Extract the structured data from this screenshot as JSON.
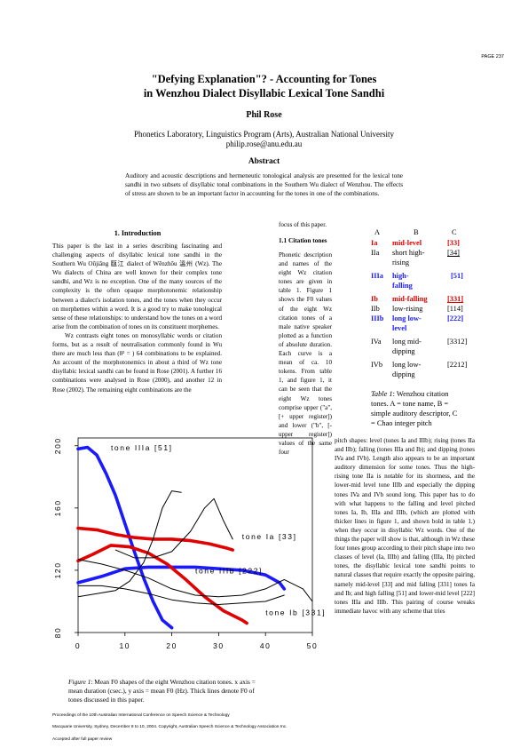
{
  "page_number": "PAGE 237",
  "title_line1": "\"Defying Explanation\"? - Accounting for Tones",
  "title_line2": "in Wenzhou Dialect Disyllabic Lexical Tone Sandhi",
  "author": "Phil Rose",
  "affiliation": "Phonetics Laboratory, Linguistics Program (Arts), Australian National University",
  "email": "philip.rose@anu.edu.au",
  "abstract_heading": "Abstract",
  "abstract_text": "Auditory and acoustic descriptions and hermeneutic tonological analysis are presented for the lexical tone sandhi in two subsets of disyllabic tonal combinations in the Southern Wu dialect of Wenzhou. The effects of stress are shown to be an important factor in accounting for the tones in one of the combinations.",
  "section1_heading": "1. Introduction",
  "intro_para1": "This paper is the last in a series describing fascinating and challenging aspects of disyllabic lexical tone sandhi in the Southern Wu Oūjiāng 甌江 dialect of Wēnzhōu 溫州 (Wz). The Wu dialects of China are well known for their complex tone sandhi, and Wz is no exception. One of the many sources of the complexity is the often opaque morphotonemic relationship between a dialect's isolation tones, and the tones when they occur on morphemes within a word. It is a good try to make tonological sense of these relationships: to understand how the tones on a word arise from the combination of tones on its constituent morphemes.",
  "intro_para2": "Wz contrasts eight tones on monosyllabic words or citation forms, but as a result of neutralisation commonly found in Wu there are much less than (8² = ) 64 combinations to be explained. An account of the morphotonemics in about a third of Wz tone disyllabic lexical sandhi can be found in Rose (2001). A further 16 combinations were analysed in Rose (2000), and another 12 in Rose (2002). The remaining eight combinations are the",
  "col2_top_text": "focus of this paper.",
  "subsection_heading": "1.1 Citation tones",
  "citation_text": "Phonetic description and names of the eight Wz citation tones are given in table 1. Figure 1 shows the F0 values of the eight Wz citation tones of a male native speaker plotted as a function of absolute duration. Each curve is a mean of ca. 10 tokens. From table 1, and figure 1, it can be seen that the eight Wz tones comprise upper (\"a\", [+ upper register]) and lower (\"b\", [-upper register]) values of the same four",
  "table": {
    "headers": [
      "A",
      "B",
      "C"
    ],
    "rows": [
      {
        "a": "Ia",
        "b": "mid-level",
        "c": "[33]",
        "style": "red",
        "c_underline": false
      },
      {
        "a": "IIa",
        "b": "short high-rising",
        "c": "[34]",
        "style": "plain",
        "c_underline": true
      },
      {
        "a": "IIIa",
        "b": "high-falling",
        "c": "[51]",
        "style": "blue",
        "c_underline": false
      },
      {
        "a": "Ib",
        "b": "mid-falling",
        "c": "[331]",
        "style": "red",
        "c_underline": true
      },
      {
        "a": "IIb",
        "b": "low-rising",
        "c": "[114]",
        "style": "plain",
        "c_underline": false
      },
      {
        "a": "IIIb",
        "b": "long low-level",
        "c": "[222]",
        "style": "blue",
        "c_underline": false
      },
      {
        "a": "IVa",
        "b": "long mid-dipping",
        "c": "[3312]",
        "style": "plain",
        "c_underline": false
      },
      {
        "a": "IVb",
        "b": "long low-dipping",
        "c": "[2212]",
        "style": "plain",
        "c_underline": false
      }
    ],
    "caption_label": "Table 1",
    "caption_text": ": Wenzhou citation tones. A = tone name, B = simple auditory descriptor, C = Chao integer pitch"
  },
  "col3_text": "pitch shapes: level (tones Ia and IIIb); rising (tones IIa and IIb); falling (tones IIIa and Ib); and dipping (tones IVa and IVb). Length also appears to be an important auditory dimension for some tones. Thus the high-rising tone IIa is notable for its shortness, and the lower-mid level tone IIIb and especially the dipping tones IVa and IVb sound long. This paper has to do with what happens to the falling and level pitched tones Ia, Ib, IIIa and IIIb, (which are plotted with thicker lines in figure 1, and shown bold in table 1.) when they occur in disyllabic Wz words. One of the things the paper will show is that, although in Wz these four tones group according to their pitch shape into two classes of level (Ia, IIIb) and falling (IIIa, Ib) pitched tones, the disyllabic lexical tone sandhi points to natural classes that require exactly the opposite pairing, namely mid-level [33] and mid falling [331] tones Ia and Ib; and high falling [51] and lower-mid level [222] tones IIIa and IIIb. This pairing of course wreaks immediate havoc with any scheme that tries",
  "figure_caption_label": "Figure 1",
  "figure_caption_text": ": Mean F0 shapes of the eight Wenzhou citation tones. x axis = mean duration (csec.), y axis = mean F0 (Hz). Thick lines denote F0 of tones discussed in this paper.",
  "footer_line1": "Proceedings of the 10th Australian International Conference on Speech Science & Technology",
  "footer_line2": "Macquarie University, Sydney, December 8 to 10, 2004. Copyright, Australian Speech Science & Technology Association Inc.",
  "footer_line3": "Accepted after full paper review",
  "colors": {
    "red": "#e00000",
    "blue": "#1a1aff",
    "thin": "#000000"
  },
  "chart_data": {
    "type": "line",
    "xlabel": "",
    "ylabel": "",
    "xlim": [
      0,
      50
    ],
    "ylim": [
      80,
      205
    ],
    "xticks": [
      "0",
      "10",
      "20",
      "30",
      "40",
      "50"
    ],
    "yticks": [
      "80",
      "120",
      "160",
      "200"
    ],
    "series": [
      {
        "name": "tone IIIa [51]",
        "color": "#1a1aff",
        "thick": true,
        "points": [
          [
            0,
            198
          ],
          [
            2,
            199
          ],
          [
            4,
            194
          ],
          [
            6,
            182
          ],
          [
            8,
            168
          ],
          [
            10,
            150
          ],
          [
            12,
            132
          ],
          [
            14,
            115
          ],
          [
            16,
            100
          ],
          [
            18,
            88
          ],
          [
            20,
            83
          ]
        ]
      },
      {
        "name": "tone IIIb [222]",
        "color": "#1a1aff",
        "thick": true,
        "points": [
          [
            0,
            112
          ],
          [
            5,
            116
          ],
          [
            10,
            121
          ],
          [
            15,
            122
          ],
          [
            20,
            122
          ],
          [
            25,
            122
          ],
          [
            30,
            121
          ],
          [
            35,
            120
          ],
          [
            40,
            117
          ],
          [
            43,
            112
          ],
          [
            44,
            108
          ]
        ]
      },
      {
        "name": "tone Ia [33]",
        "color": "#e00000",
        "thick": true,
        "points": [
          [
            0,
            147
          ],
          [
            4,
            146
          ],
          [
            8,
            143
          ],
          [
            12,
            141
          ],
          [
            16,
            140
          ],
          [
            20,
            140
          ],
          [
            24,
            139
          ],
          [
            28,
            137
          ],
          [
            32,
            134
          ],
          [
            33,
            133
          ]
        ]
      },
      {
        "name": "tone Ib [331]",
        "color": "#e00000",
        "thick": true,
        "points": [
          [
            0,
            126
          ],
          [
            3,
            130
          ],
          [
            7,
            136
          ],
          [
            11,
            135
          ],
          [
            15,
            131
          ],
          [
            19,
            124
          ],
          [
            23,
            114
          ],
          [
            27,
            103
          ],
          [
            31,
            94
          ],
          [
            35,
            88
          ],
          [
            36,
            86
          ]
        ]
      },
      {
        "name": "",
        "color": "#000000",
        "thick": false,
        "points": [
          [
            0,
            103
          ],
          [
            4,
            105
          ],
          [
            8,
            107
          ],
          [
            11,
            113
          ],
          [
            14,
            125
          ],
          [
            16,
            140
          ],
          [
            18,
            160
          ],
          [
            20,
            171
          ],
          [
            22,
            170
          ]
        ]
      },
      {
        "name": "",
        "color": "#000000",
        "thick": false,
        "points": [
          [
            8,
            133
          ],
          [
            12,
            128
          ],
          [
            16,
            128
          ],
          [
            20,
            132
          ],
          [
            24,
            145
          ],
          [
            27,
            160
          ],
          [
            29,
            166
          ],
          [
            31,
            152
          ],
          [
            33,
            140
          ]
        ]
      },
      {
        "name": "",
        "color": "#000000",
        "thick": false,
        "points": [
          [
            0,
            127
          ],
          [
            5,
            124
          ],
          [
            10,
            120
          ],
          [
            15,
            115
          ],
          [
            20,
            108
          ],
          [
            25,
            104
          ],
          [
            30,
            103
          ],
          [
            35,
            104
          ],
          [
            40,
            108
          ],
          [
            44,
            114
          ],
          [
            48,
            108
          ],
          [
            50,
            100
          ]
        ]
      },
      {
        "name": "",
        "color": "#000000",
        "thick": false,
        "points": [
          [
            0,
            110
          ],
          [
            5,
            110
          ],
          [
            10,
            108
          ],
          [
            15,
            105
          ],
          [
            20,
            101
          ],
          [
            25,
            99
          ],
          [
            30,
            98
          ],
          [
            35,
            99
          ],
          [
            40,
            100
          ],
          [
            42,
            102
          ],
          [
            44,
            104
          ]
        ]
      }
    ],
    "annotations": [
      {
        "text": "tone IIIa [51]",
        "x": 7,
        "y": 197
      },
      {
        "text": "tone Ia [33]",
        "x": 35,
        "y": 140
      },
      {
        "text": "tone IIIb [222]",
        "x": 25,
        "y": 118
      },
      {
        "text": "tone Ib [331]",
        "x": 40,
        "y": 91
      }
    ]
  }
}
